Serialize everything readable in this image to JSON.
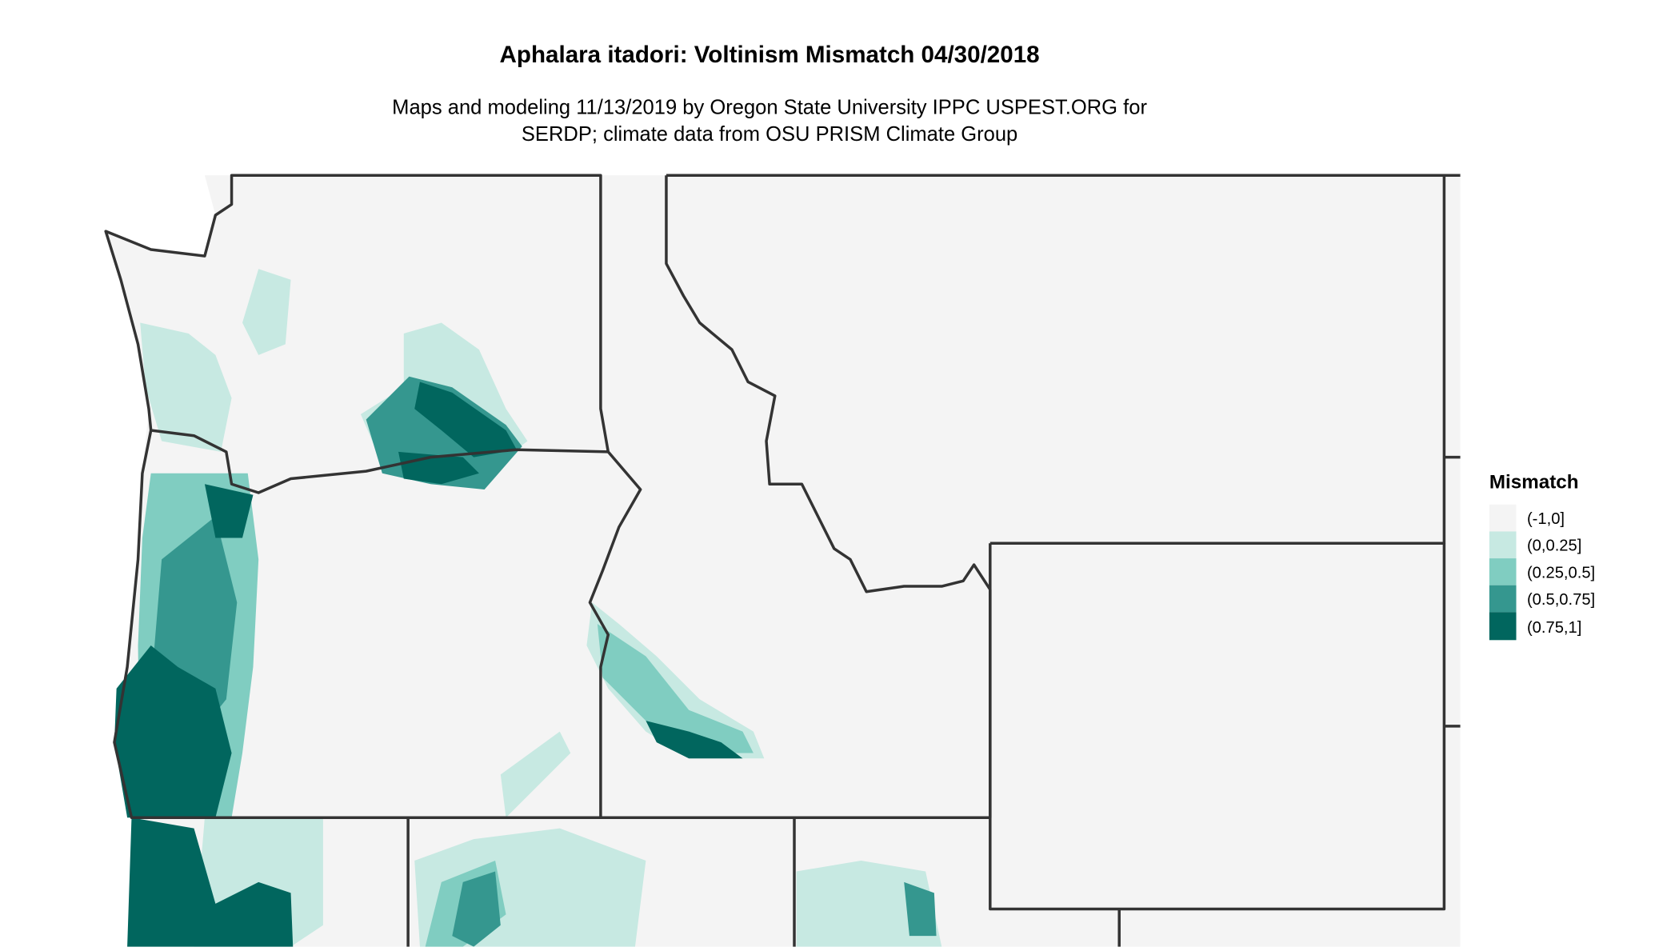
{
  "title": "Aphalara itadori: Voltinism Mismatch 04/30/2018",
  "subtitle_line1": "Maps and modeling 11/13/2019 by Oregon State University IPPC USPEST.ORG for",
  "subtitle_line2": "SERDP; climate data from OSU PRISM Climate Group",
  "legend": {
    "title": "Mismatch",
    "items": [
      {
        "label": "(-1,0]",
        "color": "#f4f4f4"
      },
      {
        "label": "(0,0.25]",
        "color": "#c7e9e2"
      },
      {
        "label": "(0.25,0.5]",
        "color": "#80cdc1"
      },
      {
        "label": "(0.5,0.75]",
        "color": "#35978f"
      },
      {
        "label": "(0.75,1]",
        "color": "#01665e"
      }
    ]
  }
}
